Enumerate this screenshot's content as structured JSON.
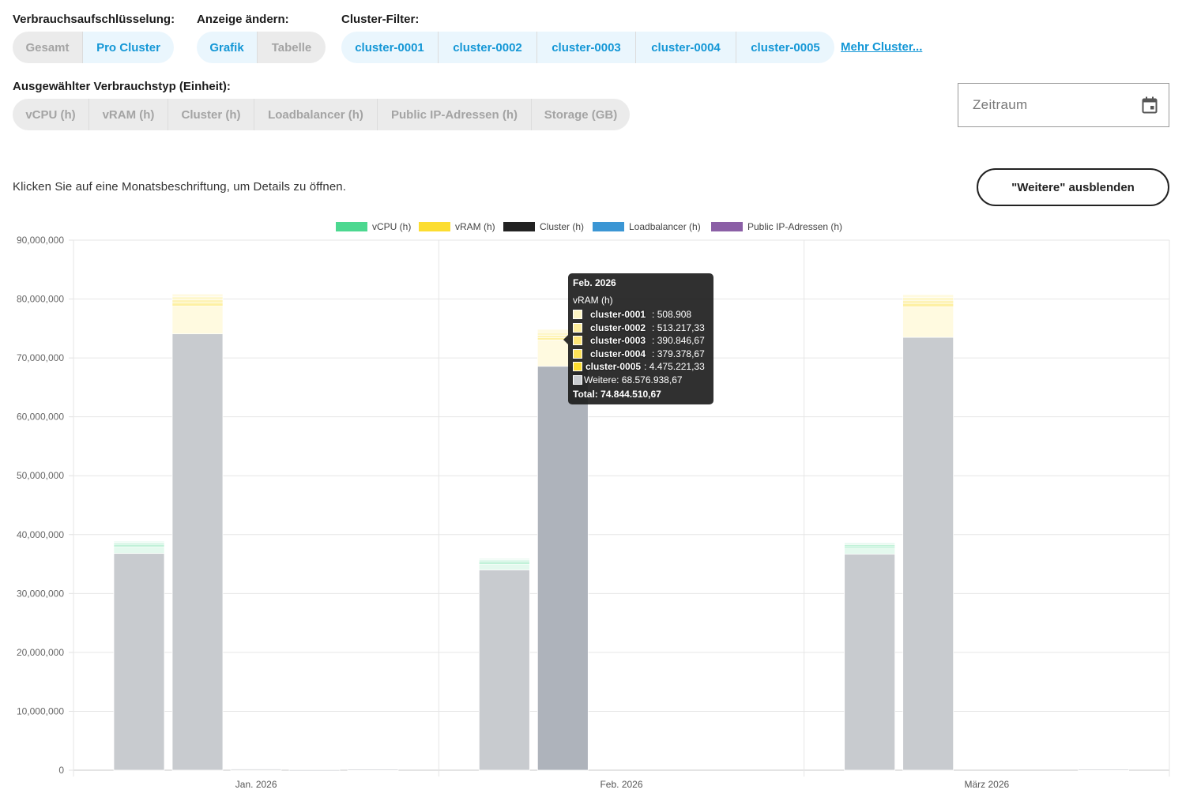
{
  "filters": {
    "breakdown": {
      "label": "Verbrauchsaufschlüsselung:",
      "options": [
        "Gesamt",
        "Pro Cluster"
      ],
      "active": "Pro Cluster"
    },
    "view": {
      "label": "Anzeige ändern:",
      "options": [
        "Grafik",
        "Tabelle"
      ],
      "active": "Grafik"
    },
    "cluster": {
      "label": "Cluster-Filter:",
      "options": [
        "cluster-0001",
        "cluster-0002",
        "cluster-0003",
        "cluster-0004",
        "cluster-0005"
      ],
      "more_label": "Mehr Cluster..."
    },
    "usage_type": {
      "label": "Ausgewählter Verbrauchstyp (Einheit):",
      "options": [
        "vCPU (h)",
        "vRAM (h)",
        "Cluster (h)",
        "Loadbalancer (h)",
        "Public IP-Adressen (h)",
        "Storage (GB)"
      ]
    },
    "date_range": {
      "placeholder": "Zeitraum",
      "icon": "calendar-icon"
    }
  },
  "hint_text": "Klicken Sie auf eine Monatsbeschriftung, um Details zu öffnen.",
  "hide_others_label": "\"Weitere\" ausblenden",
  "colors": {
    "accent": "#1497d6",
    "vcpu": "#4cd890",
    "vram": "#fcdd30",
    "cluster": "#222222",
    "loadbalancer": "#3b96d4",
    "public_ip": "#8b5fa6",
    "others": "#c8cbcf"
  },
  "chart_data": {
    "type": "bar",
    "stacked": true,
    "categories": [
      "Jan. 2026",
      "Feb. 2026",
      "März 2026"
    ],
    "legend": [
      "vCPU (h)",
      "vRAM (h)",
      "Cluster (h)",
      "Loadbalancer (h)",
      "Public IP-Adressen (h)"
    ],
    "legend_position": "top",
    "ylim": [
      0,
      90000000
    ],
    "yticks": [
      "0",
      "10,000,000",
      "20,000,000",
      "30,000,000",
      "40,000,000",
      "50,000,000",
      "60,000,000",
      "70,000,000",
      "80,000,000",
      "90,000,000"
    ],
    "grid": true,
    "groups": [
      {
        "category": "Jan. 2026",
        "bars": [
          {
            "type": "vCPU (h)",
            "others": 36800000,
            "clusters": [
              1150000,
              300000,
              250000,
              200000,
              180000
            ]
          },
          {
            "type": "vRAM (h)",
            "others": 74100000,
            "clusters": [
              4700000,
              550000,
              520000,
              500000,
              480000
            ]
          },
          {
            "type": "Cluster (h)",
            "others": 200000,
            "clusters": []
          },
          {
            "type": "Loadbalancer (h)",
            "others": 80000,
            "clusters": []
          },
          {
            "type": "Public IP-Adressen (h)",
            "others": 150000,
            "clusters": []
          }
        ]
      },
      {
        "category": "Feb. 2026",
        "bars": [
          {
            "type": "vCPU (h)",
            "others": 34000000,
            "clusters": [
              1000000,
              300000,
              250000,
              200000,
              200000
            ]
          },
          {
            "type": "vRAM (h)",
            "others": 68576938.67,
            "clusters": [
              4475221.33,
              379378.67,
              390846.67,
              513217.33,
              508908
            ]
          },
          {
            "type": "Cluster (h)",
            "others": 0,
            "clusters": []
          },
          {
            "type": "Loadbalancer (h)",
            "others": 0,
            "clusters": []
          },
          {
            "type": "Public IP-Adressen (h)",
            "others": 0,
            "clusters": []
          }
        ]
      },
      {
        "category": "März 2026",
        "bars": [
          {
            "type": "vCPU (h)",
            "others": 36700000,
            "clusters": [
              1050000,
              300000,
              250000,
              200000,
              150000
            ]
          },
          {
            "type": "vRAM (h)",
            "others": 73500000,
            "clusters": [
              5200000,
              550000,
              520000,
              500000,
              480000
            ]
          },
          {
            "type": "Cluster (h)",
            "others": 0,
            "clusters": []
          },
          {
            "type": "Loadbalancer (h)",
            "others": 0,
            "clusters": []
          },
          {
            "type": "Public IP-Adressen (h)",
            "others": 150000,
            "clusters": []
          }
        ]
      }
    ]
  },
  "tooltip": {
    "title": "Feb. 2026",
    "subtitle": "vRAM (h)",
    "rows": [
      {
        "name": "cluster-0001",
        "value": ": 508.908"
      },
      {
        "name": "cluster-0002",
        "value": ": 513.217,33"
      },
      {
        "name": "cluster-0003",
        "value": ": 390.846,67"
      },
      {
        "name": "cluster-0004",
        "value": ": 379.378,67"
      },
      {
        "name": "cluster-0005",
        "value": ": 4.475.221,33"
      }
    ],
    "others": "Weitere: 68.576.938,67",
    "total": "Total: 74.844.510,67"
  }
}
